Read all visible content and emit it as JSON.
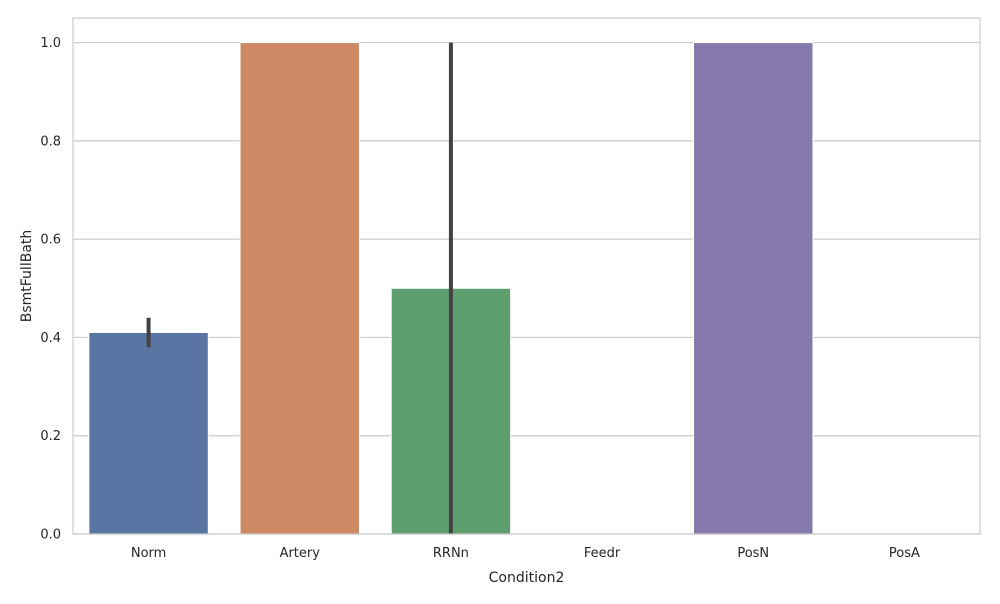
{
  "chart_data": {
    "type": "bar",
    "xlabel": "Condition2",
    "ylabel": "BsmtFullBath",
    "categories": [
      "Norm",
      "Artery",
      "RRNn",
      "Feedr",
      "PosN",
      "PosA"
    ],
    "values": [
      0.41,
      1.0,
      0.5,
      0.0,
      1.0,
      0.0
    ],
    "error_bars": [
      {
        "low": 0.38,
        "high": 0.44
      },
      null,
      {
        "low": 0.0,
        "high": 1.0
      },
      null,
      null,
      null
    ],
    "colors": [
      "#5975a4",
      "#cc8963",
      "#5f9e6e",
      "#b55d60",
      "#857aab",
      "#8d7866"
    ],
    "ylim": [
      0,
      1.05
    ],
    "yticks": [
      0.0,
      0.2,
      0.4,
      0.6,
      0.8,
      1.0
    ],
    "ytick_labels": [
      "0.0",
      "0.2",
      "0.4",
      "0.6",
      "0.8",
      "1.0"
    ],
    "grid": true,
    "grid_color": "#cccccc",
    "errorbar_color": "#424242"
  }
}
